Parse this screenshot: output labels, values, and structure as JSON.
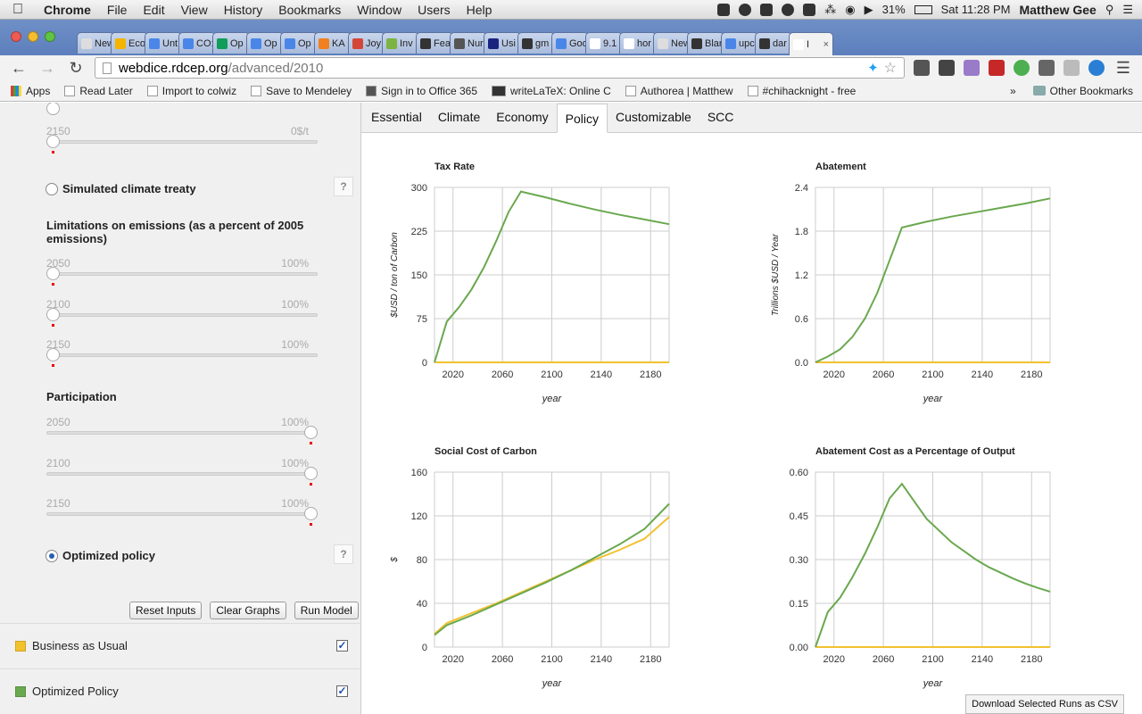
{
  "menubar": {
    "app": "Chrome",
    "items": [
      "File",
      "Edit",
      "View",
      "History",
      "Bookmarks",
      "Window",
      "Users",
      "Help"
    ],
    "battery": "31%",
    "clock": "Sat 11:28 PM",
    "user": "Matthew Gee"
  },
  "tabs": [
    {
      "label": "New T",
      "color": "#dddddd"
    },
    {
      "label": "Eco",
      "color": "#f4b400"
    },
    {
      "label": "Unt",
      "color": "#4a86e8"
    },
    {
      "label": "CO:",
      "color": "#4a86e8"
    },
    {
      "label": "Op",
      "color": "#0f9d58"
    },
    {
      "label": "Op",
      "color": "#4a86e8"
    },
    {
      "label": "Op",
      "color": "#4a86e8"
    },
    {
      "label": "KA",
      "color": "#f08020"
    },
    {
      "label": "Joy",
      "color": "#d44638"
    },
    {
      "label": "Inv",
      "color": "#7cb342"
    },
    {
      "label": "Fea",
      "color": "#333333"
    },
    {
      "label": "Nur",
      "color": "#555555"
    },
    {
      "label": "Usi",
      "color": "#1a237e"
    },
    {
      "label": "gm",
      "color": "#333333"
    },
    {
      "label": "Goo",
      "color": "#4a86e8"
    },
    {
      "label": "9.1",
      "color": "#ffffff"
    },
    {
      "label": "hor",
      "color": "#ffffff"
    },
    {
      "label": "New T",
      "color": "#dddddd"
    },
    {
      "label": "Blar",
      "color": "#333333"
    },
    {
      "label": "upc",
      "color": "#4a86e8"
    },
    {
      "label": "dar",
      "color": "#333333"
    },
    {
      "label": "I",
      "color": "#ffffff"
    }
  ],
  "address": {
    "host": "webdice.rdcep.org",
    "path": "/advanced/2010"
  },
  "bookmarks": [
    {
      "label": "Apps"
    },
    {
      "label": "Read Later"
    },
    {
      "label": "Import to colwiz"
    },
    {
      "label": "Save to Mendeley"
    },
    {
      "label": "Sign in to Office 365"
    },
    {
      "label": "writeLaTeX: Online C"
    },
    {
      "label": "Authorea | Matthew"
    },
    {
      "label": "#chihacknight - free"
    }
  ],
  "bookmarks_more": "»",
  "bookmarks_other": "Other Bookmarks",
  "left": {
    "top_slider": {
      "year": "2150",
      "value": "0$/t"
    },
    "treaty_label": "Simulated climate treaty",
    "help": "?",
    "limitations_title": "Limitations on emissions (as a percent of 2005 emissions)",
    "limitations": [
      {
        "year": "2050",
        "value": "100%",
        "level": 0
      },
      {
        "year": "2100",
        "value": "100%",
        "level": 0
      },
      {
        "year": "2150",
        "value": "100%",
        "level": 0
      }
    ],
    "participation_title": "Participation",
    "participation": [
      {
        "year": "2050",
        "value": "100%",
        "level": 1
      },
      {
        "year": "2100",
        "value": "100%",
        "level": 1
      },
      {
        "year": "2150",
        "value": "100%",
        "level": 1
      }
    ],
    "optimized_label": "Optimized policy",
    "buttons": {
      "reset": "Reset Inputs",
      "clear": "Clear Graphs",
      "run": "Run Model"
    },
    "runs": [
      {
        "label": "Business as Usual",
        "color": "#f2c12e",
        "checked": true
      },
      {
        "label": "Optimized Policy",
        "color": "#6aa84f",
        "checked": true
      }
    ]
  },
  "content_tabs": [
    "Essential",
    "Climate",
    "Economy",
    "Policy",
    "Customizable",
    "SCC"
  ],
  "active_tab": "Policy",
  "download_label": "Download Selected Runs as CSV",
  "chart_data": [
    {
      "type": "line",
      "title": "Tax Rate",
      "xlabel": "year",
      "ylabel": "$USD / ton of Carbon",
      "xlim": [
        2005,
        2195
      ],
      "ylim": [
        0,
        300
      ],
      "xticks": [
        2020,
        2060,
        2100,
        2140,
        2180
      ],
      "yticks": [
        "0",
        "75",
        "150",
        "225",
        "300"
      ],
      "series": [
        {
          "name": "Business as Usual",
          "color": "#f2c12e",
          "x": [
            2005,
            2195
          ],
          "y": [
            0,
            0
          ]
        },
        {
          "name": "Optimized Policy",
          "color": "#6aa84f",
          "x": [
            2005,
            2015,
            2025,
            2035,
            2045,
            2055,
            2065,
            2075,
            2095,
            2115,
            2135,
            2155,
            2175,
            2195
          ],
          "y": [
            0,
            70,
            95,
            125,
            163,
            208,
            258,
            293,
            283,
            272,
            262,
            253,
            245,
            237
          ]
        }
      ]
    },
    {
      "type": "line",
      "title": "Abatement",
      "xlabel": "year",
      "ylabel": "Trillions $USD / Year",
      "xlim": [
        2005,
        2195
      ],
      "ylim": [
        0,
        2.4
      ],
      "xticks": [
        2020,
        2060,
        2100,
        2140,
        2180
      ],
      "yticks": [
        "0.0",
        "0.6",
        "1.2",
        "1.8",
        "2.4"
      ],
      "series": [
        {
          "name": "Business as Usual",
          "color": "#f2c12e",
          "x": [
            2005,
            2195
          ],
          "y": [
            0,
            0
          ]
        },
        {
          "name": "Optimized Policy",
          "color": "#6aa84f",
          "x": [
            2005,
            2015,
            2025,
            2035,
            2045,
            2055,
            2065,
            2075,
            2095,
            2115,
            2135,
            2155,
            2175,
            2195
          ],
          "y": [
            0,
            0.08,
            0.18,
            0.35,
            0.6,
            0.95,
            1.4,
            1.85,
            1.93,
            2.0,
            2.06,
            2.12,
            2.18,
            2.25
          ]
        }
      ]
    },
    {
      "type": "line",
      "title": "Social Cost of Carbon",
      "xlabel": "year",
      "ylabel": "$",
      "xlim": [
        2005,
        2195
      ],
      "ylim": [
        0,
        160
      ],
      "xticks": [
        2020,
        2060,
        2100,
        2140,
        2180
      ],
      "yticks": [
        "0",
        "40",
        "80",
        "120",
        "160"
      ],
      "series": [
        {
          "name": "Business as Usual",
          "color": "#f2c12e",
          "x": [
            2005,
            2015,
            2035,
            2055,
            2075,
            2095,
            2115,
            2135,
            2155,
            2175,
            2195
          ],
          "y": [
            12,
            22,
            31,
            40,
            50,
            60,
            70,
            80,
            89,
            99,
            119
          ]
        },
        {
          "name": "Optimized Policy",
          "color": "#6aa84f",
          "x": [
            2005,
            2015,
            2035,
            2055,
            2075,
            2095,
            2115,
            2135,
            2155,
            2175,
            2195
          ],
          "y": [
            11,
            20,
            29,
            39,
            49,
            59,
            70,
            82,
            94,
            108,
            131
          ]
        }
      ]
    },
    {
      "type": "line",
      "title": "Abatement Cost as a Percentage of Output",
      "xlabel": "year",
      "ylabel": "",
      "xlim": [
        2005,
        2195
      ],
      "ylim": [
        0,
        0.6
      ],
      "xticks": [
        2020,
        2060,
        2100,
        2140,
        2180
      ],
      "yticks": [
        "0.00",
        "0.15",
        "0.30",
        "0.45",
        "0.60"
      ],
      "series": [
        {
          "name": "Business as Usual",
          "color": "#f2c12e",
          "x": [
            2005,
            2195
          ],
          "y": [
            0,
            0
          ]
        },
        {
          "name": "Optimized Policy",
          "color": "#6aa84f",
          "x": [
            2005,
            2015,
            2025,
            2035,
            2045,
            2055,
            2065,
            2075,
            2085,
            2095,
            2105,
            2115,
            2125,
            2135,
            2145,
            2155,
            2165,
            2175,
            2185,
            2195
          ],
          "y": [
            0,
            0.12,
            0.17,
            0.24,
            0.32,
            0.41,
            0.51,
            0.56,
            0.5,
            0.44,
            0.4,
            0.36,
            0.33,
            0.3,
            0.275,
            0.255,
            0.235,
            0.218,
            0.203,
            0.19
          ]
        }
      ]
    }
  ]
}
